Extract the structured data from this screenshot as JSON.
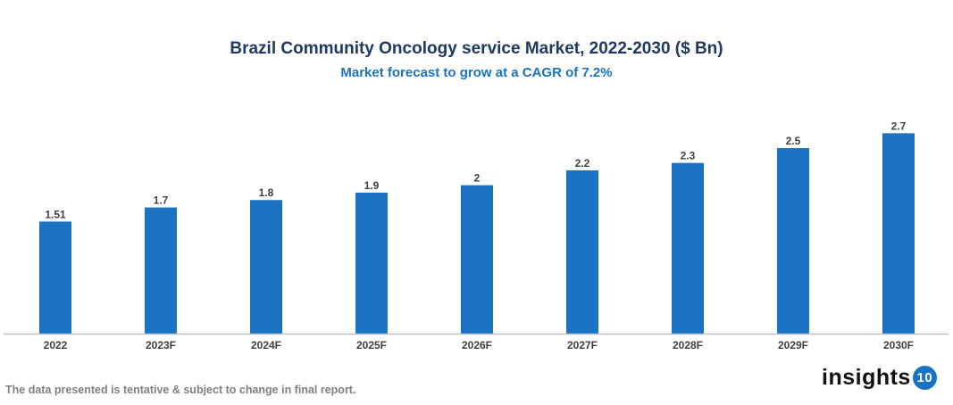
{
  "chart_data": {
    "type": "bar",
    "title": "Brazil Community Oncology service Market, 2022-2030 ($ Bn)",
    "subtitle": "Market forecast to grow at a CAGR of 7.2%",
    "categories": [
      "2022",
      "2023F",
      "2024F",
      "2025F",
      "2026F",
      "2027F",
      "2028F",
      "2029F",
      "2030F"
    ],
    "values": [
      1.51,
      1.7,
      1.8,
      1.9,
      2,
      2.2,
      2.3,
      2.5,
      2.7
    ],
    "labels": [
      "1.51",
      "1.7",
      "1.8",
      "1.9",
      "2",
      "2.2",
      "2.3",
      "2.5",
      "2.7"
    ],
    "ylim": [
      0,
      2.7
    ],
    "grid": false,
    "bar_color": "#1a73c0"
  },
  "footer": {
    "disclaimer": "The data presented is tentative & subject to change in final report."
  },
  "logo": {
    "text": "insights",
    "badge": "10"
  }
}
